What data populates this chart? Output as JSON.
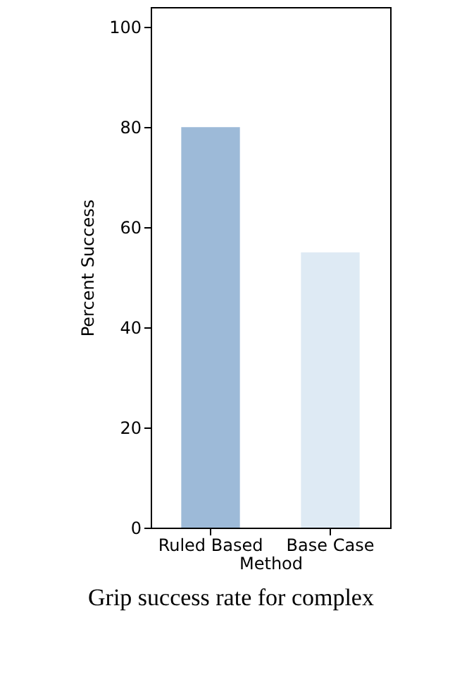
{
  "chart_data": {
    "type": "bar",
    "xlabel": "Method",
    "ylabel": "Percent Success",
    "categories": [
      "Ruled Based",
      "Base Case"
    ],
    "values": [
      80,
      55
    ],
    "colors": [
      "#9dbad8",
      "#deeaf4"
    ],
    "ylim": [
      0,
      104
    ],
    "yticks": [
      0,
      20,
      40,
      60,
      80,
      100
    ],
    "grid": false,
    "annotations": [
      "Grip success rate for complex"
    ]
  }
}
